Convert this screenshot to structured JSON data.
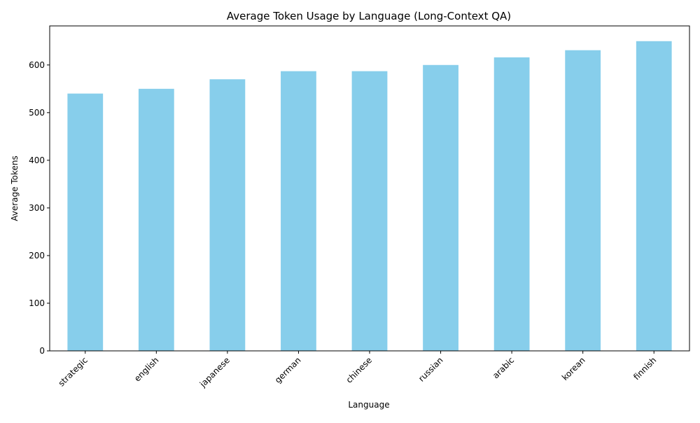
{
  "chart_data": {
    "type": "bar",
    "title": "Average Token Usage by Language (Long-Context QA)",
    "xlabel": "Language",
    "ylabel": "Average Tokens",
    "categories": [
      "strategic",
      "english",
      "japanese",
      "german",
      "chinese",
      "russian",
      "arabic",
      "korean",
      "finnish"
    ],
    "values": [
      540,
      550,
      570,
      587,
      587,
      600,
      616,
      631,
      650
    ],
    "ylim": [
      0,
      682
    ],
    "yticks": [
      0,
      100,
      200,
      300,
      400,
      500,
      600
    ],
    "bar_color": "#87CEEB",
    "grid": false,
    "legend": "none"
  }
}
